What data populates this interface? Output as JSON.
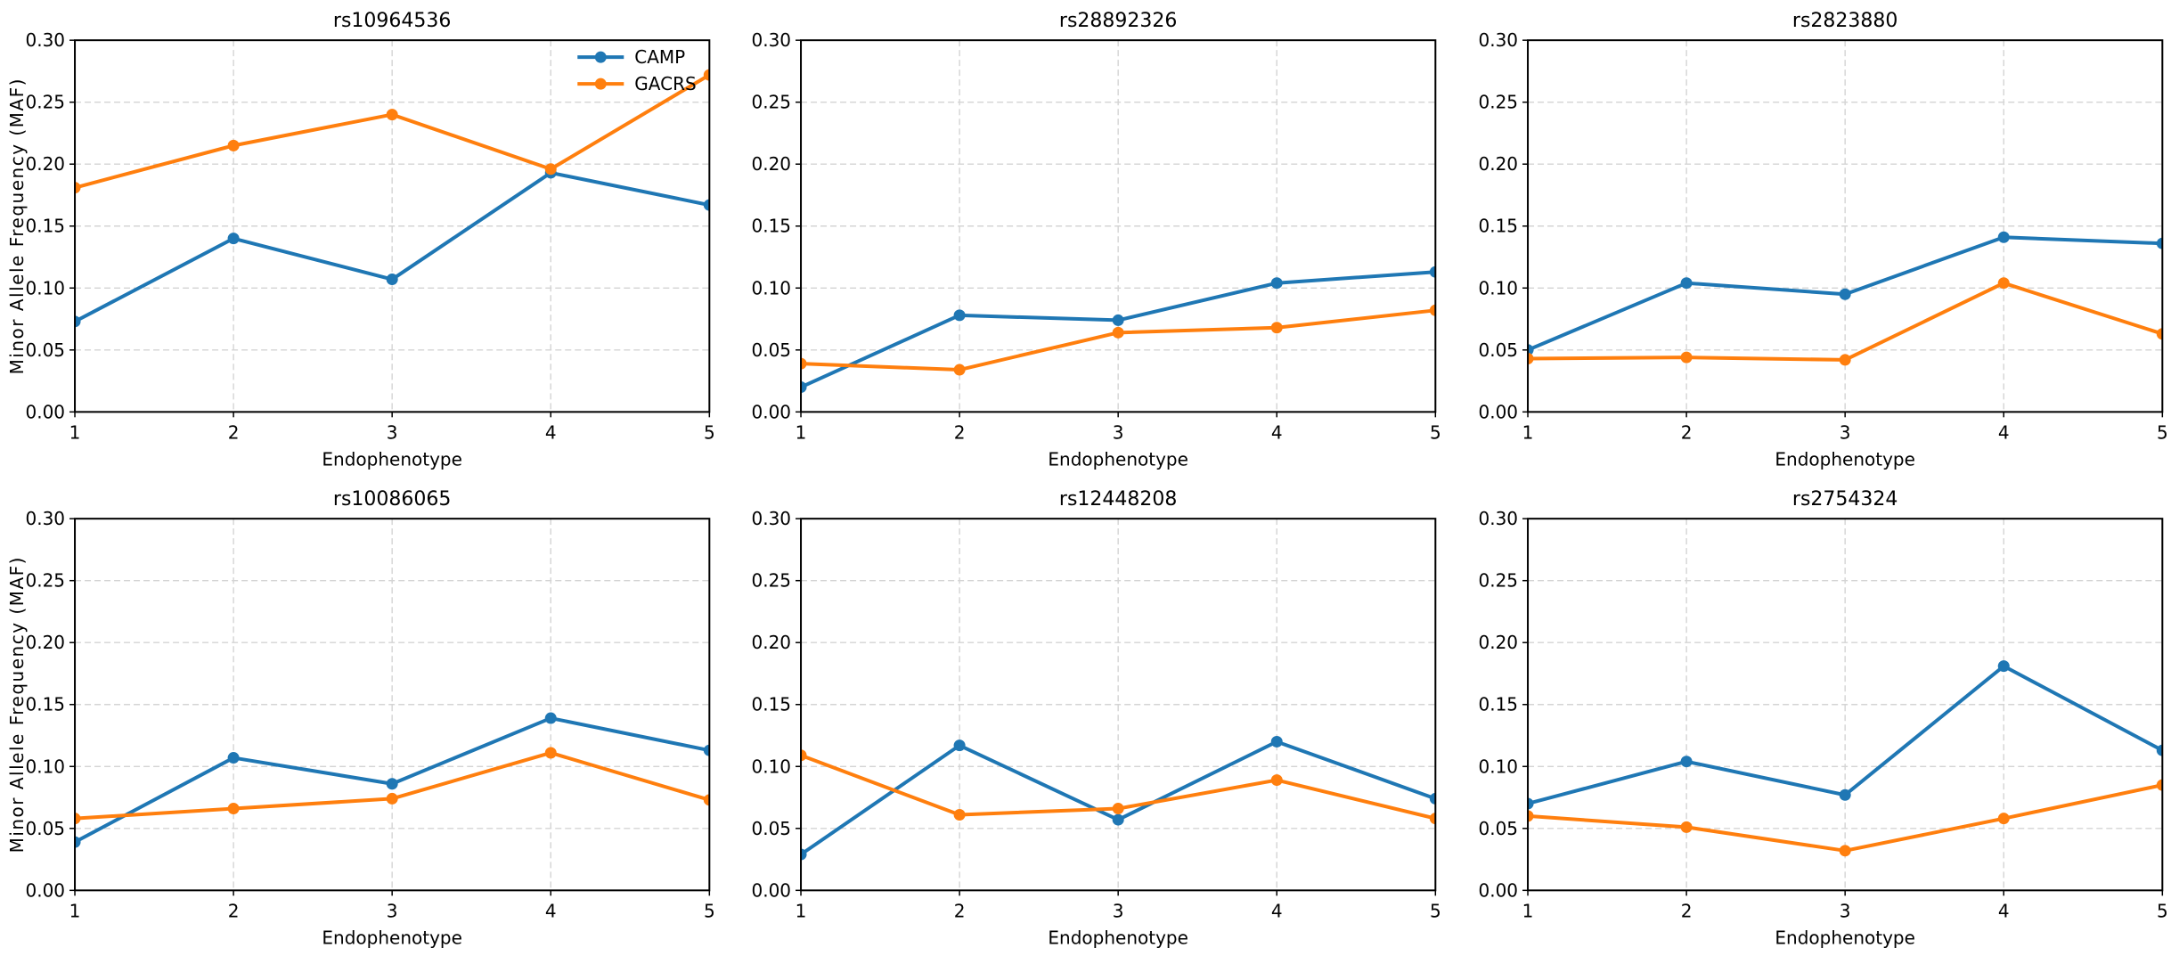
{
  "figure": {
    "xlabel": "Endophenotype",
    "ylabel": "Minor Allele Frequency (MAF)",
    "legend": {
      "entries": [
        "CAMP",
        "GACRS"
      ],
      "position": "upper-right-of-first-subplot",
      "frame": false
    },
    "colors": {
      "CAMP": "#1f77b4",
      "GACRS": "#ff7f0e",
      "grid": "#d4d4d4",
      "spine": "#000000",
      "background": "#ffffff"
    }
  },
  "chart_data": [
    {
      "type": "line",
      "title": "rs10964536",
      "x": [
        1,
        2,
        3,
        4,
        5
      ],
      "xticks": [
        "1",
        "2",
        "3",
        "4",
        "5"
      ],
      "yticks": [
        "0.00",
        "0.05",
        "0.10",
        "0.15",
        "0.20",
        "0.25",
        "0.30"
      ],
      "xlabel": "Endophenotype",
      "ylabel": "Minor Allele Frequency (MAF)",
      "ylim": [
        0,
        0.3
      ],
      "grid": true,
      "legend": true,
      "series": [
        {
          "name": "CAMP",
          "color": "#1f77b4",
          "values": [
            0.073,
            0.14,
            0.107,
            0.193,
            0.167
          ]
        },
        {
          "name": "GACRS",
          "color": "#ff7f0e",
          "values": [
            0.181,
            0.215,
            0.24,
            0.196,
            0.272
          ]
        }
      ]
    },
    {
      "type": "line",
      "title": "rs28892326",
      "x": [
        1,
        2,
        3,
        4,
        5
      ],
      "xticks": [
        "1",
        "2",
        "3",
        "4",
        "5"
      ],
      "yticks": [
        "0.00",
        "0.05",
        "0.10",
        "0.15",
        "0.20",
        "0.25",
        "0.30"
      ],
      "xlabel": "Endophenotype",
      "ylabel": "",
      "ylim": [
        0,
        0.3
      ],
      "grid": true,
      "legend": false,
      "series": [
        {
          "name": "CAMP",
          "color": "#1f77b4",
          "values": [
            0.02,
            0.078,
            0.074,
            0.104,
            0.113
          ]
        },
        {
          "name": "GACRS",
          "color": "#ff7f0e",
          "values": [
            0.039,
            0.034,
            0.064,
            0.068,
            0.082
          ]
        }
      ]
    },
    {
      "type": "line",
      "title": "rs2823880",
      "x": [
        1,
        2,
        3,
        4,
        5
      ],
      "xticks": [
        "1",
        "2",
        "3",
        "4",
        "5"
      ],
      "yticks": [
        "0.00",
        "0.05",
        "0.10",
        "0.15",
        "0.20",
        "0.25",
        "0.30"
      ],
      "xlabel": "Endophenotype",
      "ylabel": "",
      "ylim": [
        0,
        0.3
      ],
      "grid": true,
      "legend": false,
      "series": [
        {
          "name": "CAMP",
          "color": "#1f77b4",
          "values": [
            0.05,
            0.104,
            0.095,
            0.141,
            0.136
          ]
        },
        {
          "name": "GACRS",
          "color": "#ff7f0e",
          "values": [
            0.043,
            0.044,
            0.042,
            0.104,
            0.063
          ]
        }
      ]
    },
    {
      "type": "line",
      "title": "rs10086065",
      "x": [
        1,
        2,
        3,
        4,
        5
      ],
      "xticks": [
        "1",
        "2",
        "3",
        "4",
        "5"
      ],
      "yticks": [
        "0.00",
        "0.05",
        "0.10",
        "0.15",
        "0.20",
        "0.25",
        "0.30"
      ],
      "xlabel": "Endophenotype",
      "ylabel": "Minor Allele Frequency (MAF)",
      "ylim": [
        0,
        0.3
      ],
      "grid": true,
      "legend": false,
      "series": [
        {
          "name": "CAMP",
          "color": "#1f77b4",
          "values": [
            0.039,
            0.107,
            0.086,
            0.139,
            0.113
          ]
        },
        {
          "name": "GACRS",
          "color": "#ff7f0e",
          "values": [
            0.058,
            0.066,
            0.074,
            0.111,
            0.073
          ]
        }
      ]
    },
    {
      "type": "line",
      "title": "rs12448208",
      "x": [
        1,
        2,
        3,
        4,
        5
      ],
      "xticks": [
        "1",
        "2",
        "3",
        "4",
        "5"
      ],
      "yticks": [
        "0.00",
        "0.05",
        "0.10",
        "0.15",
        "0.20",
        "0.25",
        "0.30"
      ],
      "xlabel": "Endophenotype",
      "ylabel": "",
      "ylim": [
        0,
        0.3
      ],
      "grid": true,
      "legend": false,
      "series": [
        {
          "name": "CAMP",
          "color": "#1f77b4",
          "values": [
            0.029,
            0.117,
            0.057,
            0.12,
            0.074
          ]
        },
        {
          "name": "GACRS",
          "color": "#ff7f0e",
          "values": [
            0.109,
            0.061,
            0.066,
            0.089,
            0.058
          ]
        }
      ]
    },
    {
      "type": "line",
      "title": "rs2754324",
      "x": [
        1,
        2,
        3,
        4,
        5
      ],
      "xticks": [
        "1",
        "2",
        "3",
        "4",
        "5"
      ],
      "yticks": [
        "0.00",
        "0.05",
        "0.10",
        "0.15",
        "0.20",
        "0.25",
        "0.30"
      ],
      "xlabel": "Endophenotype",
      "ylabel": "",
      "ylim": [
        0,
        0.3
      ],
      "grid": true,
      "legend": false,
      "series": [
        {
          "name": "CAMP",
          "color": "#1f77b4",
          "values": [
            0.07,
            0.104,
            0.077,
            0.181,
            0.113
          ]
        },
        {
          "name": "GACRS",
          "color": "#ff7f0e",
          "values": [
            0.06,
            0.051,
            0.032,
            0.058,
            0.085
          ]
        }
      ]
    }
  ]
}
